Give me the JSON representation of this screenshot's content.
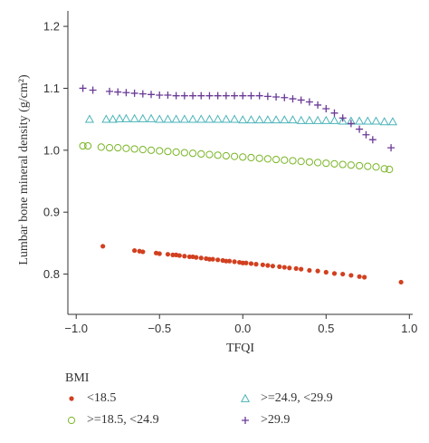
{
  "chart_data": {
    "type": "scatter",
    "xlabel": "TFQI",
    "ylabel": "Lumbar bone mineral density (g/cm²)",
    "xlim": [
      -1.05,
      1.02
    ],
    "ylim": [
      0.735,
      1.225
    ],
    "x_ticks": [
      -1.0,
      -0.5,
      0.0,
      0.5,
      1.0
    ],
    "x_tick_labels": [
      "−1.0",
      "−0.5",
      "0.0",
      "0.5",
      "1.0"
    ],
    "y_ticks": [
      0.8,
      0.9,
      1.0,
      1.1,
      1.2
    ],
    "y_tick_labels": [
      "0.8",
      "0.9",
      "1.0",
      "1.1",
      "1.2"
    ],
    "grid": false,
    "legend_title": "BMI",
    "legend_position": "bottom",
    "series": [
      {
        "name": "<18.5",
        "color": "#d2401f",
        "marker": "dot",
        "points": [
          [
            -0.84,
            0.845
          ],
          [
            -0.65,
            0.838
          ],
          [
            -0.62,
            0.837
          ],
          [
            -0.6,
            0.836
          ],
          [
            -0.52,
            0.834
          ],
          [
            -0.5,
            0.833
          ],
          [
            -0.45,
            0.832
          ],
          [
            -0.42,
            0.831
          ],
          [
            -0.4,
            0.831
          ],
          [
            -0.38,
            0.83
          ],
          [
            -0.35,
            0.829
          ],
          [
            -0.32,
            0.828
          ],
          [
            -0.3,
            0.828
          ],
          [
            -0.28,
            0.827
          ],
          [
            -0.25,
            0.826
          ],
          [
            -0.22,
            0.825
          ],
          [
            -0.2,
            0.824
          ],
          [
            -0.18,
            0.824
          ],
          [
            -0.15,
            0.823
          ],
          [
            -0.12,
            0.822
          ],
          [
            -0.1,
            0.821
          ],
          [
            -0.08,
            0.821
          ],
          [
            -0.05,
            0.82
          ],
          [
            -0.02,
            0.819
          ],
          [
            0.0,
            0.818
          ],
          [
            0.02,
            0.818
          ],
          [
            0.05,
            0.817
          ],
          [
            0.08,
            0.816
          ],
          [
            0.12,
            0.815
          ],
          [
            0.15,
            0.814
          ],
          [
            0.18,
            0.813
          ],
          [
            0.22,
            0.812
          ],
          [
            0.25,
            0.811
          ],
          [
            0.28,
            0.81
          ],
          [
            0.32,
            0.809
          ],
          [
            0.35,
            0.808
          ],
          [
            0.4,
            0.806
          ],
          [
            0.45,
            0.805
          ],
          [
            0.5,
            0.803
          ],
          [
            0.55,
            0.801
          ],
          [
            0.6,
            0.8
          ],
          [
            0.65,
            0.798
          ],
          [
            0.7,
            0.796
          ],
          [
            0.73,
            0.795
          ],
          [
            0.95,
            0.787
          ]
        ]
      },
      {
        "name": ">=18.5, <24.9",
        "color": "#7ab526",
        "marker": "circle",
        "points": [
          [
            -0.96,
            1.007
          ],
          [
            -0.93,
            1.007
          ],
          [
            -0.85,
            1.005
          ],
          [
            -0.8,
            1.004
          ],
          [
            -0.75,
            1.004
          ],
          [
            -0.7,
            1.003
          ],
          [
            -0.65,
            1.002
          ],
          [
            -0.6,
            1.001
          ],
          [
            -0.55,
            1.0
          ],
          [
            -0.5,
            0.999
          ],
          [
            -0.45,
            0.998
          ],
          [
            -0.4,
            0.997
          ],
          [
            -0.35,
            0.996
          ],
          [
            -0.3,
            0.995
          ],
          [
            -0.25,
            0.994
          ],
          [
            -0.2,
            0.993
          ],
          [
            -0.15,
            0.992
          ],
          [
            -0.1,
            0.991
          ],
          [
            -0.05,
            0.99
          ],
          [
            0.0,
            0.989
          ],
          [
            0.05,
            0.988
          ],
          [
            0.1,
            0.987
          ],
          [
            0.15,
            0.986
          ],
          [
            0.2,
            0.985
          ],
          [
            0.25,
            0.984
          ],
          [
            0.3,
            0.983
          ],
          [
            0.35,
            0.982
          ],
          [
            0.4,
            0.981
          ],
          [
            0.45,
            0.98
          ],
          [
            0.5,
            0.979
          ],
          [
            0.55,
            0.978
          ],
          [
            0.6,
            0.977
          ],
          [
            0.65,
            0.976
          ],
          [
            0.7,
            0.975
          ],
          [
            0.75,
            0.974
          ],
          [
            0.8,
            0.973
          ],
          [
            0.85,
            0.97
          ],
          [
            0.88,
            0.969
          ]
        ]
      },
      {
        "name": ">=24.9, <29.9",
        "color": "#4ab3b8",
        "marker": "triangle",
        "points": [
          [
            -0.92,
            1.05
          ],
          [
            -0.82,
            1.05
          ],
          [
            -0.78,
            1.05
          ],
          [
            -0.74,
            1.051
          ],
          [
            -0.7,
            1.051
          ],
          [
            -0.65,
            1.051
          ],
          [
            -0.6,
            1.051
          ],
          [
            -0.55,
            1.051
          ],
          [
            -0.5,
            1.05
          ],
          [
            -0.45,
            1.05
          ],
          [
            -0.4,
            1.05
          ],
          [
            -0.35,
            1.05
          ],
          [
            -0.3,
            1.05
          ],
          [
            -0.25,
            1.05
          ],
          [
            -0.2,
            1.05
          ],
          [
            -0.15,
            1.05
          ],
          [
            -0.1,
            1.05
          ],
          [
            -0.05,
            1.05
          ],
          [
            0.0,
            1.049
          ],
          [
            0.05,
            1.049
          ],
          [
            0.1,
            1.049
          ],
          [
            0.15,
            1.049
          ],
          [
            0.2,
            1.049
          ],
          [
            0.25,
            1.049
          ],
          [
            0.3,
            1.049
          ],
          [
            0.35,
            1.048
          ],
          [
            0.4,
            1.048
          ],
          [
            0.45,
            1.048
          ],
          [
            0.5,
            1.048
          ],
          [
            0.55,
            1.048
          ],
          [
            0.6,
            1.047
          ],
          [
            0.65,
            1.047
          ],
          [
            0.7,
            1.047
          ],
          [
            0.75,
            1.047
          ],
          [
            0.8,
            1.047
          ],
          [
            0.85,
            1.046
          ],
          [
            0.9,
            1.046
          ]
        ]
      },
      {
        "name": ">29.9",
        "color": "#6a3a96",
        "marker": "plus",
        "points": [
          [
            -0.96,
            1.1
          ],
          [
            -0.9,
            1.097
          ],
          [
            -0.8,
            1.095
          ],
          [
            -0.75,
            1.094
          ],
          [
            -0.7,
            1.093
          ],
          [
            -0.65,
            1.092
          ],
          [
            -0.6,
            1.091
          ],
          [
            -0.55,
            1.09
          ],
          [
            -0.5,
            1.089
          ],
          [
            -0.45,
            1.089
          ],
          [
            -0.4,
            1.088
          ],
          [
            -0.35,
            1.088
          ],
          [
            -0.3,
            1.088
          ],
          [
            -0.25,
            1.088
          ],
          [
            -0.2,
            1.088
          ],
          [
            -0.15,
            1.088
          ],
          [
            -0.1,
            1.088
          ],
          [
            -0.05,
            1.088
          ],
          [
            0.0,
            1.088
          ],
          [
            0.05,
            1.088
          ],
          [
            0.1,
            1.088
          ],
          [
            0.15,
            1.087
          ],
          [
            0.2,
            1.086
          ],
          [
            0.25,
            1.085
          ],
          [
            0.3,
            1.083
          ],
          [
            0.35,
            1.081
          ],
          [
            0.4,
            1.078
          ],
          [
            0.45,
            1.073
          ],
          [
            0.5,
            1.067
          ],
          [
            0.55,
            1.06
          ],
          [
            0.6,
            1.052
          ],
          [
            0.65,
            1.043
          ],
          [
            0.7,
            1.034
          ],
          [
            0.74,
            1.025
          ],
          [
            0.78,
            1.017
          ],
          [
            0.89,
            1.004
          ]
        ]
      }
    ]
  }
}
